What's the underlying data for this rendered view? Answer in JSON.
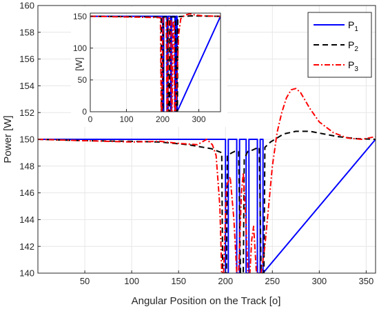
{
  "chart_data": [
    {
      "type": "line",
      "xlabel": "Angular Position on the Track",
      "xlabel_unit": "[o]",
      "ylabel": "Power [W]",
      "xlim": [
        0,
        360
      ],
      "ylim": [
        140,
        160
      ],
      "xticks": [
        "50",
        "100",
        "150",
        "200",
        "250",
        "300",
        "350"
      ],
      "yticks": [
        "140",
        "142",
        "144",
        "146",
        "148",
        "150",
        "152",
        "154",
        "156",
        "158",
        "160"
      ],
      "grid": true,
      "legend_position": "top-right",
      "legend": [
        {
          "label": "P",
          "sub": "1",
          "color": "#0000ff",
          "style": "solid"
        },
        {
          "label": "P",
          "sub": "2",
          "color": "#000000",
          "style": "dashed"
        },
        {
          "label": "P",
          "sub": "3",
          "color": "#ff0000",
          "style": "dashdot"
        }
      ],
      "series": [
        {
          "name": "P1",
          "x": [
            0,
            200,
            200,
            203,
            203,
            212,
            212,
            215,
            215,
            222,
            222,
            225,
            225,
            234,
            234,
            237,
            237,
            240,
            240,
            360
          ],
          "y": [
            150,
            150,
            140,
            140,
            150,
            150,
            140,
            140,
            150,
            150,
            140,
            140,
            150,
            150,
            140,
            140,
            150,
            150,
            140,
            150
          ]
        },
        {
          "name": "P2",
          "x": [
            0,
            50,
            100,
            130,
            160,
            185,
            196,
            197,
            201,
            202,
            207,
            210,
            214,
            216,
            219,
            220,
            223,
            224,
            229,
            232,
            236,
            238,
            241,
            242,
            248,
            255,
            262,
            275,
            290,
            305,
            320,
            340,
            360
          ],
          "y": [
            150,
            149.9,
            149.85,
            149.8,
            149.6,
            149.3,
            149.0,
            140,
            140,
            148.8,
            149.0,
            149.1,
            149.1,
            140,
            140,
            148.5,
            149.0,
            149.1,
            149.2,
            149.3,
            149.4,
            140,
            140,
            149.4,
            149.8,
            150.1,
            150.4,
            150.6,
            150.6,
            150.4,
            150.2,
            150.05,
            150
          ]
        },
        {
          "name": "P3",
          "x": [
            0,
            50,
            100,
            130,
            150,
            170,
            180,
            186,
            190,
            194,
            196,
            198,
            201,
            205,
            209,
            212,
            214,
            217,
            219,
            221,
            224,
            226,
            228,
            230,
            233,
            235,
            238,
            242,
            246,
            250,
            255,
            260,
            265,
            270,
            275,
            280,
            290,
            300,
            315,
            330,
            345,
            360
          ],
          "y": [
            150,
            149.9,
            149.8,
            149.85,
            149.7,
            149.6,
            150.0,
            149.6,
            148.8,
            145,
            140,
            140,
            146.5,
            147.2,
            144,
            140,
            140,
            146.0,
            147.5,
            145,
            140,
            140,
            142.5,
            143.5,
            140,
            140,
            140,
            142,
            145,
            148,
            150.5,
            152,
            153.1,
            153.7,
            153.8,
            153.5,
            152.3,
            151.3,
            150.5,
            150.1,
            150.0,
            150.2
          ]
        }
      ]
    },
    {
      "type": "line",
      "role": "inset",
      "ylabel": "[W]",
      "xlim": [
        0,
        360
      ],
      "ylim": [
        0,
        155
      ],
      "xticks": [
        "0",
        "100",
        "200",
        "300"
      ],
      "yticks": [
        "0",
        "50",
        "100",
        "150"
      ],
      "grid": true,
      "series": [
        {
          "name": "P1",
          "x": [
            0,
            200,
            200,
            203,
            203,
            212,
            212,
            215,
            215,
            222,
            222,
            225,
            225,
            234,
            234,
            237,
            237,
            240,
            240,
            360
          ],
          "y": [
            150,
            150,
            0,
            0,
            150,
            150,
            0,
            0,
            150,
            150,
            0,
            0,
            150,
            150,
            0,
            0,
            150,
            150,
            0,
            150
          ]
        },
        {
          "name": "P2",
          "x": [
            0,
            196,
            197,
            201,
            202,
            214,
            216,
            219,
            220,
            236,
            238,
            241,
            242,
            280,
            360
          ],
          "y": [
            150,
            149,
            0,
            0,
            149,
            149,
            0,
            0,
            149,
            149,
            0,
            0,
            149.5,
            150.6,
            150
          ]
        },
        {
          "name": "P3",
          "x": [
            0,
            194,
            196,
            198,
            201,
            210,
            212,
            214,
            217,
            223,
            224,
            226,
            229,
            232,
            233,
            235,
            238,
            244,
            250,
            262,
            275,
            290,
            315,
            360
          ],
          "y": [
            150,
            148,
            0,
            0,
            147,
            146,
            0,
            0,
            147,
            145,
            0,
            0,
            143,
            140,
            0,
            0,
            20,
            120,
            146,
            152,
            153.8,
            152,
            150.5,
            150
          ]
        }
      ]
    }
  ]
}
